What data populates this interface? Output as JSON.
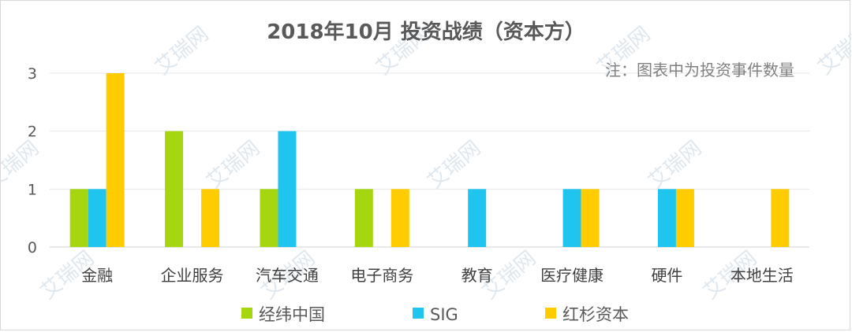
{
  "chart_data": {
    "type": "bar",
    "title": "2018年10月 投资战绩（资本方）",
    "note": "注：图表中为投资事件数量",
    "categories": [
      "金融",
      "企业服务",
      "汽车交通",
      "电子商务",
      "教育",
      "医疗健康",
      "硬件",
      "本地生活"
    ],
    "series": [
      {
        "name": "经纬中国",
        "color": "#a6d610",
        "values": [
          1,
          2,
          1,
          1,
          0,
          0,
          0,
          0
        ]
      },
      {
        "name": "SIG",
        "color": "#1fc4ef",
        "values": [
          1,
          0,
          2,
          0,
          1,
          1,
          1,
          0
        ]
      },
      {
        "name": "红杉资本",
        "color": "#ffcc00",
        "values": [
          3,
          1,
          0,
          1,
          0,
          1,
          1,
          1
        ]
      }
    ],
    "ylim": [
      0,
      3
    ],
    "yticks": [
      0,
      1,
      2,
      3
    ],
    "grid": true,
    "legend": "bottom"
  },
  "watermark": "艾瑞网"
}
